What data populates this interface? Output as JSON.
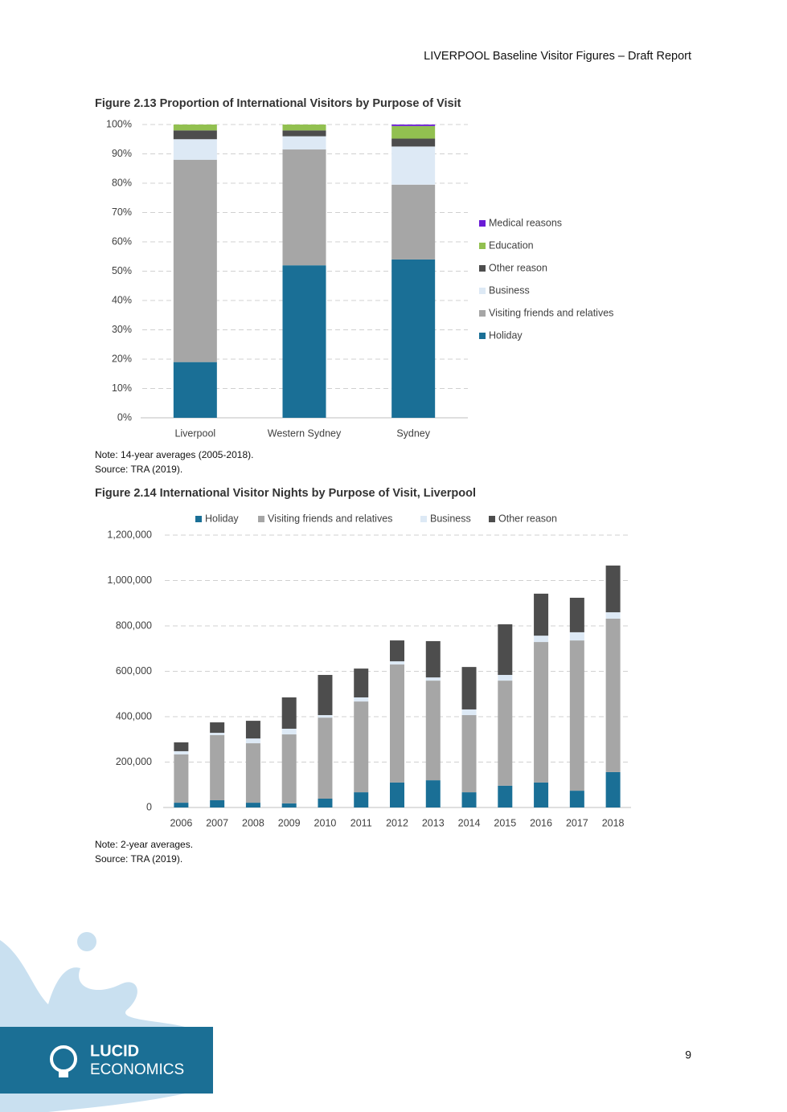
{
  "header": "LIVERPOOL Baseline Visitor Figures – Draft Report",
  "chart_data": [
    {
      "type": "stacked_bar",
      "title": "Figure 2.13 Proportion of International Visitors by Purpose of Visit",
      "categories": [
        "Liverpool",
        "Western Sydney",
        "Sydney"
      ],
      "series": [
        {
          "name": "Holiday",
          "color": "#1a6f96",
          "values": [
            19,
            52,
            54
          ]
        },
        {
          "name": "Visiting friends and relatives",
          "color": "#a6a6a6",
          "values": [
            69,
            39.5,
            25.5
          ]
        },
        {
          "name": "Business",
          "color": "#dde9f5",
          "values": [
            7,
            4.5,
            13
          ]
        },
        {
          "name": "Other reason",
          "color": "#4d4d4d",
          "values": [
            3,
            2,
            2.7
          ]
        },
        {
          "name": "Education",
          "color": "#92c050",
          "values": [
            2,
            2,
            4.3
          ]
        },
        {
          "name": "Medical reasons",
          "color": "#6a1bd6",
          "values": [
            0,
            0,
            0.5
          ]
        }
      ],
      "ylim": [
        0,
        100
      ],
      "yticks": [
        {
          "value": 0,
          "label": "0%"
        },
        {
          "value": 10,
          "label": "10%"
        },
        {
          "value": 20,
          "label": "20%"
        },
        {
          "value": 30,
          "label": "30%"
        },
        {
          "value": 40,
          "label": "40%"
        },
        {
          "value": 50,
          "label": "50%"
        },
        {
          "value": 60,
          "label": "60%"
        },
        {
          "value": 70,
          "label": "70%"
        },
        {
          "value": 80,
          "label": "80%"
        },
        {
          "value": 90,
          "label": "90%"
        },
        {
          "value": 100,
          "label": "100%"
        }
      ],
      "grid": true,
      "legend": "right"
    },
    {
      "type": "stacked_bar",
      "title": "Figure 2.14 International Visitor Nights by Purpose of Visit, Liverpool",
      "categories": [
        "2006",
        "2007",
        "2008",
        "2009",
        "2010",
        "2011",
        "2012",
        "2013",
        "2014",
        "2015",
        "2016",
        "2017",
        "2018"
      ],
      "series": [
        {
          "name": "Holiday",
          "color": "#1a6f96",
          "values": [
            21000,
            32000,
            21000,
            18000,
            39000,
            67000,
            110000,
            120000,
            67000,
            96000,
            110000,
            74000,
            156000
          ]
        },
        {
          "name": "Visiting friends and relatives",
          "color": "#a6a6a6",
          "values": [
            213000,
            287000,
            262000,
            304000,
            357000,
            400000,
            520000,
            439000,
            340000,
            463000,
            619000,
            662000,
            676000
          ]
        },
        {
          "name": "Business",
          "color": "#dde9f5",
          "values": [
            14000,
            10000,
            21000,
            25000,
            11000,
            18000,
            14000,
            14000,
            25000,
            25000,
            28000,
            36000,
            28000
          ]
        },
        {
          "name": "Other reason",
          "color": "#4d4d4d",
          "values": [
            39000,
            46000,
            78000,
            138000,
            177000,
            127000,
            92000,
            160000,
            187000,
            223000,
            185000,
            152000,
            206000
          ]
        }
      ],
      "ylim": [
        0,
        1200000
      ],
      "yticks": [
        0,
        {
          "value": 200000,
          "label": "200,000"
        },
        {
          "value": 400000,
          "label": "400,000"
        },
        {
          "value": 600000,
          "label": "600,000"
        },
        {
          "value": 800000,
          "label": "800,000"
        },
        {
          "value": 1000000,
          "label": "1,000,000"
        },
        {
          "value": 1200000,
          "label": "1,200,000"
        }
      ],
      "grid": true,
      "legend": "top"
    }
  ],
  "notes": [
    {
      "note": "Note: 14-year averages (2005-2018).",
      "source": "Source: TRA (2019)."
    },
    {
      "note": "Note: 2-year averages.",
      "source": "Source: TRA (2019)."
    }
  ],
  "footer": {
    "logo_top": "LUCID",
    "logo_bottom": "ECONOMICS",
    "page": "9"
  }
}
